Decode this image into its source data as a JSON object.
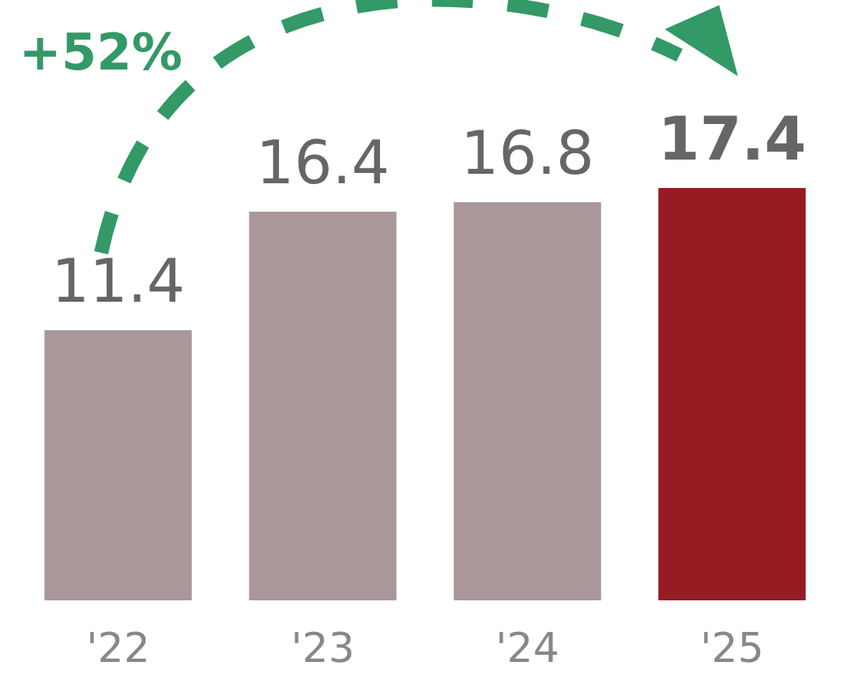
{
  "chart_data": {
    "type": "bar",
    "categories": [
      "'22",
      "'23",
      "'24",
      "'25"
    ],
    "values": [
      11.4,
      16.4,
      16.8,
      17.4
    ],
    "colors": [
      "#a9979a",
      "#a9979a",
      "#a9979a",
      "#961b22"
    ],
    "data_labels": true,
    "annotations": [
      "+52%"
    ]
  }
}
